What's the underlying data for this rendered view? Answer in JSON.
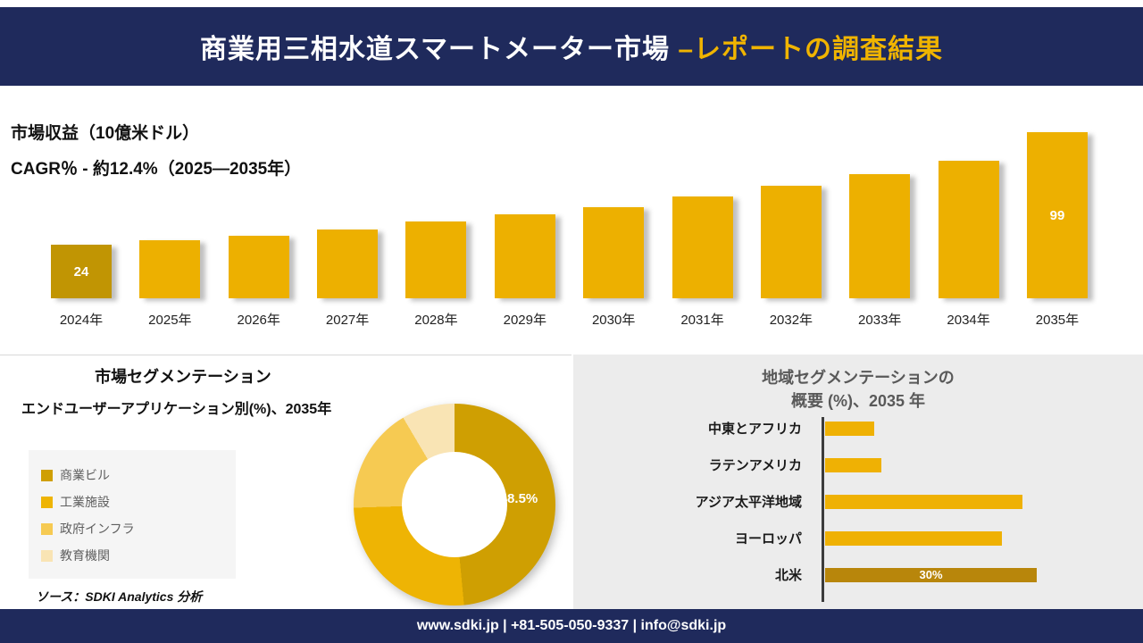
{
  "theme": {
    "navy": "#1f2a5c",
    "accent_gold": "#f0b400",
    "bar_gold": "#edb000",
    "bar_gold_dark": "#b8860b"
  },
  "header": {
    "title_main": "商業用三相水道スマートメーター市場 ",
    "title_accent": "–レポートの調査結果"
  },
  "revenue_section": {
    "metric_label": "市場収益（10億米ドル）",
    "cagr_label": "CAGR％ - 約12.4%（2025―2035年）"
  },
  "chart_data": [
    {
      "id": "revenue_bars",
      "type": "bar",
      "title": "市場収益（10億米ドル）",
      "subtitle": "CAGR％ - 約12.4%（2025―2035年）",
      "categories": [
        "2024年",
        "2025年",
        "2026年",
        "2027年",
        "2028年",
        "2029年",
        "2030年",
        "2031年",
        "2032年",
        "2033年",
        "2034年",
        "2035年"
      ],
      "values": [
        24,
        27,
        30,
        34,
        39,
        44,
        49,
        56,
        63,
        71,
        80,
        99
      ],
      "labeled_points": {
        "2024年": "24",
        "2035年": "99"
      },
      "ylim": [
        0,
        110
      ],
      "grid": false,
      "bar_color": "#edb000",
      "first_bar_color": "#c19503",
      "label_color": "#ffffff"
    },
    {
      "id": "enduser_donut",
      "type": "pie",
      "title": "市場セグメンテーション",
      "subtitle": "エンドユーザーアプリケーション別(%)、2035年",
      "labels": [
        "商業ビル",
        "工業施設",
        "政府インフラ",
        "教育機関"
      ],
      "values": [
        48.5,
        26,
        17,
        8.5
      ],
      "colors": [
        "#cf9f02",
        "#eeb404",
        "#f6ca52",
        "#f9e4b4"
      ],
      "center_label": "48.5%",
      "legend_position": "left"
    },
    {
      "id": "region_hbars",
      "type": "bar",
      "orientation": "horizontal",
      "title": "地域セグメンテーションの 概要 (%)、2035 年",
      "categories": [
        "中東とアフリカ",
        "ラテンアメリカ",
        "アジア太平洋地域",
        "ヨーロッパ",
        "北米"
      ],
      "values": [
        7,
        8,
        28,
        25,
        30
      ],
      "xlim": [
        0,
        32
      ],
      "bar_colors": [
        "#efb104",
        "#efb104",
        "#efb104",
        "#efb104",
        "#b8860b"
      ],
      "data_label": {
        "category": "北米",
        "text": "30%"
      }
    }
  ],
  "segmentation": {
    "source": "ソース：SDKI Analytics 分析"
  },
  "region": {
    "title_line1": "地域セグメンテーションの",
    "title_line2": "概要 (%)、2035 年"
  },
  "footer": {
    "text": "www.sdki.jp | +81-505-050-9337 | info@sdki.jp"
  }
}
